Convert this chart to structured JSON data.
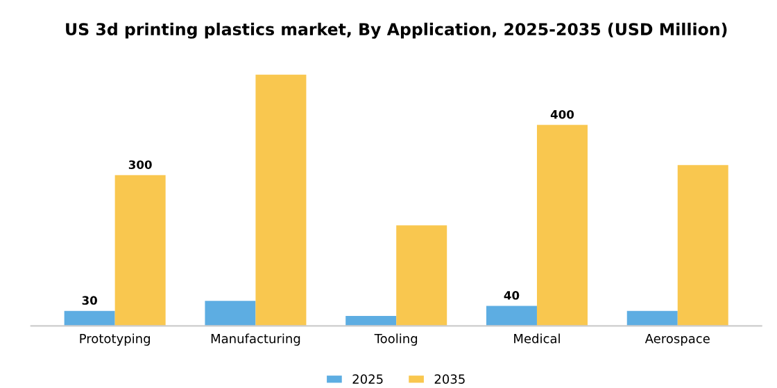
{
  "chart_data": {
    "type": "bar",
    "title": "US 3d printing plastics market, By Application, 2025-2035 (USD Million)",
    "categories": [
      "Prototyping",
      "Manufacturing",
      "Tooling",
      "Medical",
      "Aerospace"
    ],
    "series": [
      {
        "name": "2025",
        "color": "#5dade2",
        "values": [
          30,
          50,
          20,
          40,
          30
        ],
        "value_labels": [
          "30",
          null,
          null,
          "40",
          null
        ]
      },
      {
        "name": "2035",
        "color": "#f9c74f",
        "values": [
          300,
          500,
          200,
          400,
          320
        ],
        "value_labels": [
          "300",
          null,
          null,
          "400",
          null
        ]
      }
    ],
    "legend": "bottom",
    "grid": false
  }
}
